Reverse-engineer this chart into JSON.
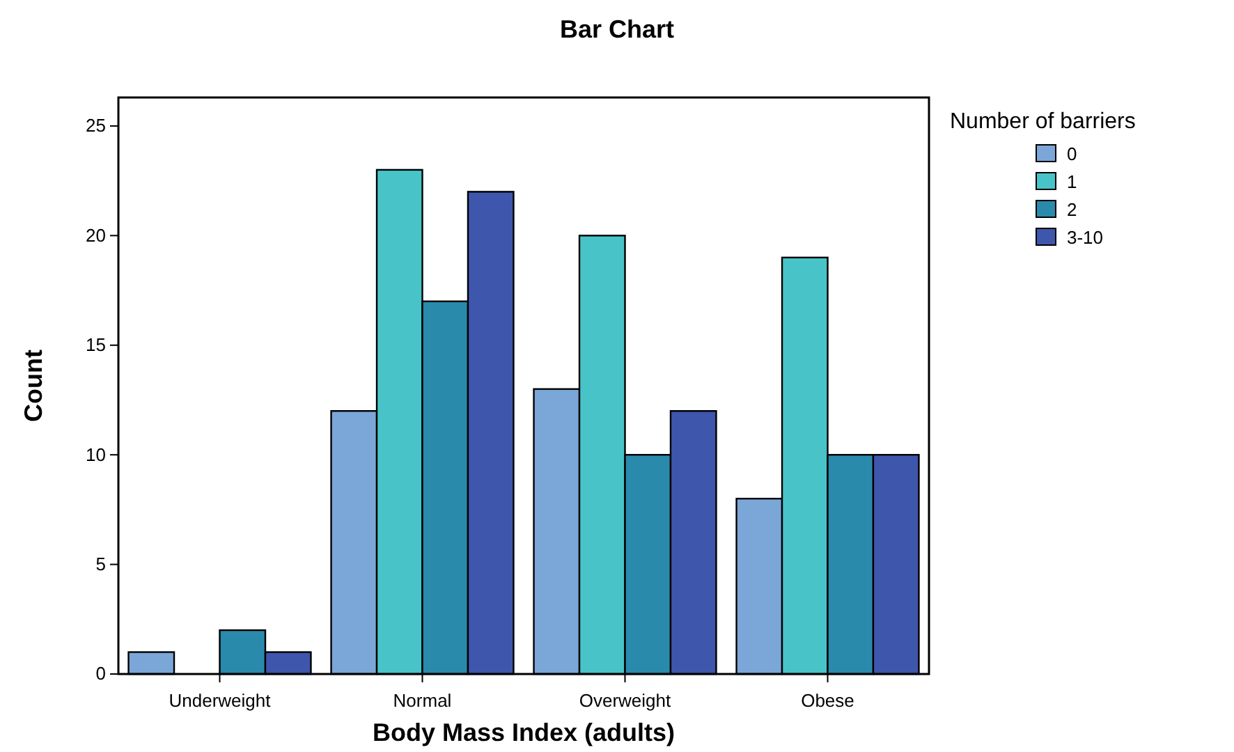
{
  "chart_data": {
    "type": "bar",
    "title": "Bar Chart",
    "xlabel": "Body Mass Index (adults)",
    "ylabel": "Count",
    "legend_title": "Number of barriers",
    "categories": [
      "Underweight",
      "Normal",
      "Overweight",
      "Obese"
    ],
    "series": [
      {
        "name": "0",
        "color": "#7ba7d8",
        "values": [
          1,
          12,
          13,
          8
        ]
      },
      {
        "name": "1",
        "color": "#48c4c8",
        "values": [
          0,
          23,
          20,
          19
        ]
      },
      {
        "name": "2",
        "color": "#2a8aab",
        "values": [
          2,
          17,
          10,
          10
        ]
      },
      {
        "name": "3-10",
        "color": "#3f56ad",
        "values": [
          1,
          22,
          12,
          10
        ]
      }
    ],
    "ylim": [
      0,
      26.3
    ],
    "yticks": [
      0,
      5,
      10,
      15,
      20,
      25
    ],
    "grid": false,
    "legend": "top right"
  }
}
